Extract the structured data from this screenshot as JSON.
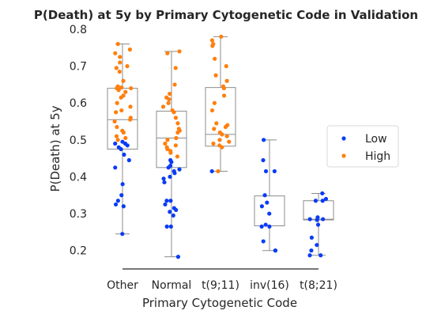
{
  "chart_data": {
    "type": "box-strip",
    "title": "P(Death) at 5y by Primary Cytogenetic Code in Validation",
    "xlabel": "Primary Cytogenetic Code",
    "ylabel": "P(Death) at 5y",
    "categories": [
      "Other",
      "Normal",
      "t(9;11)",
      "inv(16)",
      "t(8;21)"
    ],
    "ylim": [
      0.15,
      0.8
    ],
    "yticks": [
      0.2,
      0.3,
      0.4,
      0.5,
      0.6,
      0.7,
      0.8
    ],
    "ytick_labels": [
      "0.2",
      "0.3",
      "0.4",
      "0.5",
      "0.6",
      "0.7",
      "0.8"
    ],
    "grid": false,
    "legend": {
      "position": "right",
      "entries": [
        "Low",
        "High"
      ]
    },
    "colors": {
      "Low": "#0a3cf5",
      "High": "#ff7f0e",
      "box_edge": "#8c8c8c",
      "axis": "#262626"
    },
    "boxes": [
      {
        "category": "Other",
        "whisker_low": 0.245,
        "q1": 0.475,
        "median": 0.555,
        "q3": 0.64,
        "whisker_high": 0.76
      },
      {
        "category": "Normal",
        "whisker_low": 0.183,
        "q1": 0.425,
        "median": 0.505,
        "q3": 0.578,
        "whisker_high": 0.74
      },
      {
        "category": "t(9;11)",
        "whisker_low": 0.415,
        "q1": 0.483,
        "median": 0.515,
        "q3": 0.642,
        "whisker_high": 0.78
      },
      {
        "category": "inv(16)",
        "whisker_low": 0.2,
        "q1": 0.267,
        "median": 0.267,
        "q3": 0.348,
        "whisker_high": 0.5
      },
      {
        "category": "t(8;21)",
        "whisker_low": 0.187,
        "q1": 0.283,
        "median": 0.285,
        "q3": 0.335,
        "whisker_high": 0.355
      }
    ],
    "points": [
      {
        "category": "Other",
        "group": "Low",
        "values": [
          0.245,
          0.32,
          0.325,
          0.335,
          0.35,
          0.38,
          0.425,
          0.445,
          0.46,
          0.475,
          0.48,
          0.485,
          0.49,
          0.49,
          0.495
        ]
      },
      {
        "category": "Other",
        "group": "High",
        "values": [
          0.5,
          0.505,
          0.51,
          0.52,
          0.525,
          0.535,
          0.55,
          0.555,
          0.56,
          0.575,
          0.58,
          0.59,
          0.6,
          0.615,
          0.62,
          0.63,
          0.635,
          0.64,
          0.64,
          0.642,
          0.645,
          0.66,
          0.685,
          0.695,
          0.7,
          0.71,
          0.725,
          0.735,
          0.745,
          0.76
        ]
      },
      {
        "category": "Normal",
        "group": "Low",
        "values": [
          0.183,
          0.265,
          0.265,
          0.295,
          0.305,
          0.31,
          0.315,
          0.325,
          0.335,
          0.335,
          0.385,
          0.395,
          0.4,
          0.41,
          0.415,
          0.42,
          0.425,
          0.43,
          0.44,
          0.445
        ]
      },
      {
        "category": "Normal",
        "group": "High",
        "values": [
          0.455,
          0.465,
          0.47,
          0.475,
          0.48,
          0.485,
          0.49,
          0.5,
          0.505,
          0.52,
          0.525,
          0.53,
          0.545,
          0.56,
          0.575,
          0.58,
          0.59,
          0.6,
          0.61,
          0.615,
          0.625,
          0.65,
          0.695,
          0.735,
          0.74
        ]
      },
      {
        "category": "t(9;11)",
        "group": "Low",
        "values": [
          0.415
        ]
      },
      {
        "category": "t(9;11)",
        "group": "High",
        "values": [
          0.415,
          0.48,
          0.485,
          0.49,
          0.495,
          0.5,
          0.51,
          0.515,
          0.52,
          0.53,
          0.535,
          0.54,
          0.545,
          0.58,
          0.6,
          0.62,
          0.64,
          0.645,
          0.66,
          0.675,
          0.7,
          0.72,
          0.755,
          0.76,
          0.77,
          0.78
        ]
      },
      {
        "category": "inv(16)",
        "group": "Low",
        "values": [
          0.2,
          0.2,
          0.225,
          0.265,
          0.265,
          0.27,
          0.3,
          0.32,
          0.33,
          0.35,
          0.415,
          0.415,
          0.445,
          0.5
        ]
      },
      {
        "category": "t(8;21)",
        "group": "Low",
        "values": [
          0.187,
          0.187,
          0.2,
          0.215,
          0.235,
          0.27,
          0.283,
          0.285,
          0.285,
          0.29,
          0.335,
          0.335,
          0.34,
          0.355
        ]
      }
    ]
  }
}
